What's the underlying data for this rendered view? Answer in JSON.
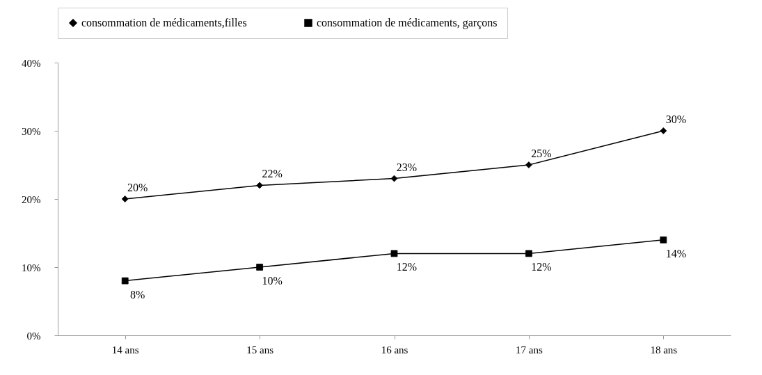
{
  "chart_data": {
    "type": "line",
    "categories": [
      "14 ans",
      "15 ans",
      "16 ans",
      "17 ans",
      "18 ans"
    ],
    "series": [
      {
        "name": "consommation de médicaments,filles",
        "color": "#000000",
        "marker": "diamond",
        "values": [
          20,
          22,
          23,
          25,
          30
        ],
        "value_labels": [
          "20%",
          "22%",
          "23%",
          "25%",
          "30%"
        ]
      },
      {
        "name": "consommation de médicaments, garçons",
        "color": "#000000",
        "marker": "square",
        "values": [
          8,
          10,
          12,
          12,
          14
        ],
        "value_labels": [
          "8%",
          "10%",
          "12%",
          "12%",
          "14%"
        ]
      }
    ],
    "ylim": [
      0,
      40
    ],
    "yticks": [
      {
        "value": 0,
        "label": "0%"
      },
      {
        "value": 10,
        "label": "10%"
      },
      {
        "value": 20,
        "label": "20%"
      },
      {
        "value": 30,
        "label": "30%"
      },
      {
        "value": 40,
        "label": "40%"
      }
    ],
    "grid": false,
    "legend": "top"
  }
}
